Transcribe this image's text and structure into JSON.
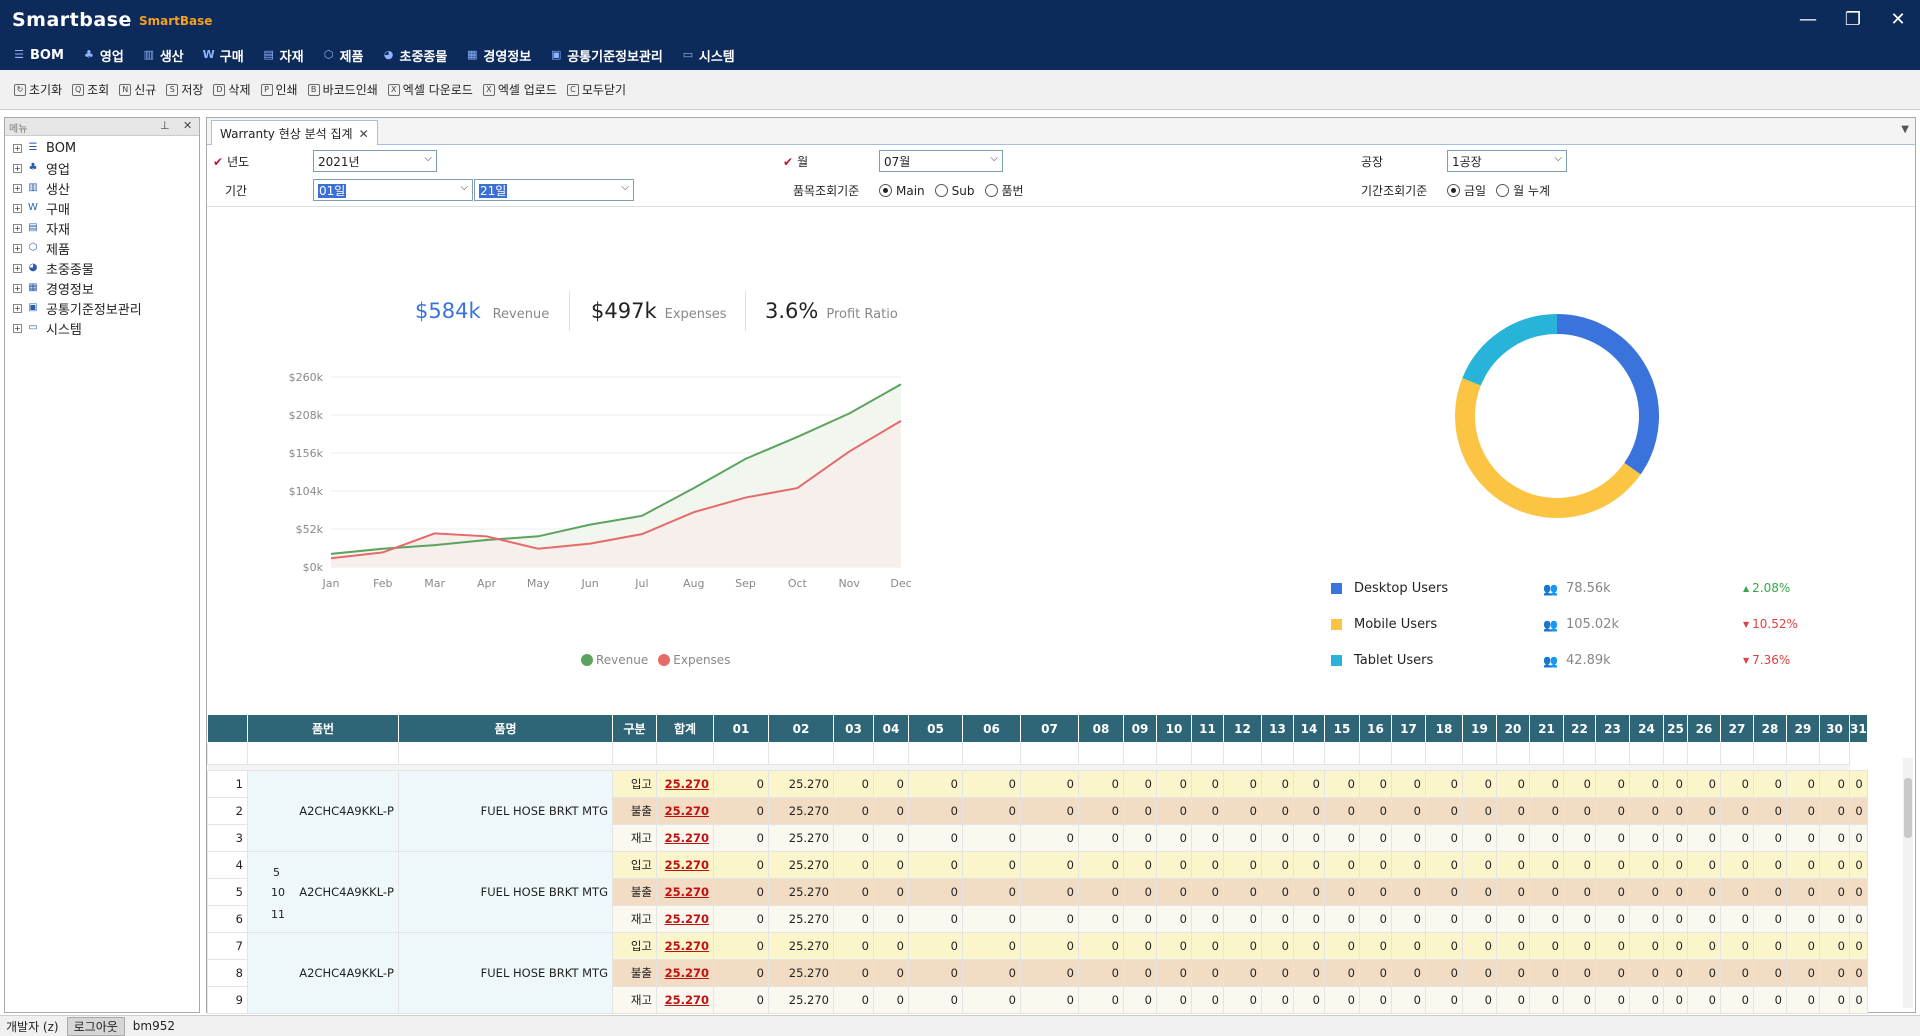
{
  "app": {
    "logo": "Smartbase",
    "subtitle": "SmartBase",
    "window_min": "—",
    "window_max": "❐",
    "window_close": "✕"
  },
  "menu": [
    {
      "icon": "bom-icon",
      "label": "BOM"
    },
    {
      "icon": "sales-icon",
      "label": "영업"
    },
    {
      "icon": "production-icon",
      "label": "생산"
    },
    {
      "icon": "purchase-icon",
      "label": "구매"
    },
    {
      "icon": "material-icon",
      "label": "자재"
    },
    {
      "icon": "product-icon",
      "label": "제품"
    },
    {
      "icon": "major-item-icon",
      "label": "초중종물"
    },
    {
      "icon": "management-icon",
      "label": "경영정보"
    },
    {
      "icon": "standard-info-icon",
      "label": "공통기준정보관리"
    },
    {
      "icon": "system-icon",
      "label": "시스템"
    }
  ],
  "toolbar": [
    {
      "icon": "reset-icon",
      "label": "초기화"
    },
    {
      "icon": "search-icon",
      "label": "조회"
    },
    {
      "icon": "new-icon",
      "label": "신규"
    },
    {
      "icon": "save-icon",
      "label": "저장"
    },
    {
      "icon": "delete-icon",
      "label": "삭제"
    },
    {
      "icon": "print-icon",
      "label": "인쇄"
    },
    {
      "icon": "barcode-icon",
      "label": "바코드인쇄"
    },
    {
      "icon": "excel-download-icon",
      "label": "엑셀 다운로드"
    },
    {
      "icon": "excel-upload-icon",
      "label": "엑셀 업로드"
    },
    {
      "icon": "close-all-icon",
      "label": "모두닫기"
    }
  ],
  "sidebar": {
    "title": "메뉴",
    "items": [
      {
        "label": "BOM"
      },
      {
        "label": "영업"
      },
      {
        "label": "생산"
      },
      {
        "label": "구매"
      },
      {
        "label": "자재"
      },
      {
        "label": "제품"
      },
      {
        "label": "초중종물"
      },
      {
        "label": "경영정보"
      },
      {
        "label": "공통기준정보관리"
      },
      {
        "label": "시스템"
      }
    ]
  },
  "tab": {
    "label": "Warranty 현상 분석 집계"
  },
  "filters": {
    "year_label": "년도",
    "year_value": "2021년",
    "month_label": "월",
    "month_value": "07월",
    "plant_label": "공장",
    "plant_value": "1공장",
    "period_label": "기간",
    "period_from": "01일",
    "period_to": "21일",
    "item_basis_label": "품목조회기준",
    "item_basis_options": [
      "Main",
      "Sub",
      "품번"
    ],
    "item_basis_selected": "Main",
    "period_basis_label": "기간조회기준",
    "period_basis_options": [
      "금일",
      "월 누계"
    ],
    "period_basis_selected": "금일"
  },
  "kpis": {
    "revenue_value": "$584k",
    "revenue_label": "Revenue",
    "expenses_value": "$497k",
    "expenses_label": "Expenses",
    "profit_value": "3.6%",
    "profit_label": "Profit Ratio"
  },
  "colors": {
    "revenue": "#5ba35e",
    "expenses": "#e66a6a",
    "desktop": "#3b73dc",
    "mobile": "#fbc543",
    "tablet": "#28b4d8",
    "header": "#2e6678",
    "kpi_blue": "#3b73dc"
  },
  "chart_data": [
    {
      "type": "area",
      "x": [
        "Jan",
        "Feb",
        "Mar",
        "Apr",
        "May",
        "Jun",
        "Jul",
        "Aug",
        "Sep",
        "Oct",
        "Nov",
        "Dec"
      ],
      "y_ticks": [
        "$0k",
        "$52k",
        "$104k",
        "$156k",
        "$208k",
        "$260k"
      ],
      "ylim": [
        0,
        260
      ],
      "series": [
        {
          "name": "Revenue",
          "values": [
            18,
            25,
            30,
            37,
            42,
            58,
            70,
            108,
            148,
            178,
            210,
            250
          ]
        },
        {
          "name": "Expenses",
          "values": [
            12,
            20,
            46,
            42,
            25,
            32,
            45,
            75,
            95,
            108,
            158,
            200
          ]
        }
      ]
    },
    {
      "type": "pie",
      "categories": [
        "Desktop Users",
        "Mobile Users",
        "Tablet Users"
      ],
      "values": [
        78.56,
        105.02,
        42.89
      ]
    }
  ],
  "users_legend": [
    {
      "name": "Desktop Users",
      "count": "78.56k",
      "change": "2.08%",
      "dir": "▲"
    },
    {
      "name": "Mobile Users",
      "count": "105.02k",
      "change": "10.52%",
      "dir": "▼"
    },
    {
      "name": "Tablet Users",
      "count": "42.89k",
      "change": "7.36%",
      "dir": "▼"
    }
  ],
  "grid": {
    "headers": [
      "품번",
      "품명",
      "구분",
      "합계",
      "01",
      "02",
      "03",
      "04",
      "05",
      "06",
      "07",
      "08",
      "09",
      "10",
      "11",
      "12",
      "13",
      "14",
      "15",
      "16",
      "17",
      "18",
      "19",
      "20",
      "21",
      "22",
      "23",
      "24",
      "25",
      "26",
      "27",
      "28",
      "29",
      "30",
      "31"
    ],
    "groups": [
      {
        "part_no": "A2CHC4A9KKL-P",
        "part_name": "FUEL HOSE BRKT MTG"
      },
      {
        "part_no": "A2CHC4A9KKL-P",
        "part_name": "FUEL HOSE BRKT MTG"
      },
      {
        "part_no": "A2CHC4A9KKL-P",
        "part_name": "FUEL HOSE BRKT MTG"
      }
    ],
    "kinds": [
      "입고",
      "불출",
      "재고"
    ],
    "sum": "25.270",
    "zero": "0",
    "day2": "25.270",
    "stray": [
      "5",
      "10",
      "11"
    ]
  },
  "status": {
    "user": "개발자 (z)",
    "logout": "로그아웃",
    "id": "bm952"
  }
}
